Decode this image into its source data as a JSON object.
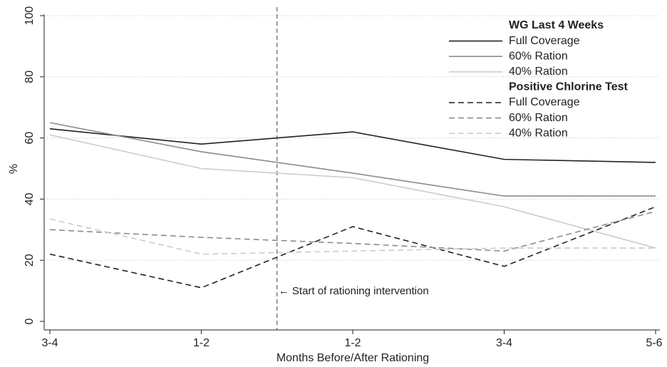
{
  "chart_data": {
    "type": "line",
    "x_label": "Months Before/After Rationing",
    "y_label": "%",
    "categories": [
      "3-4",
      "1-2",
      "1-2",
      "3-4",
      "5-6"
    ],
    "ylim": [
      0,
      100
    ],
    "yticks": [
      0,
      20,
      40,
      60,
      80,
      100
    ],
    "grid": true,
    "annotation": "← Start of rationing intervention",
    "groups": [
      {
        "title": "WG Last 4 Weeks",
        "dash": false,
        "series": [
          {
            "name": "Full Coverage",
            "color": "#222222",
            "values": [
              63,
              58,
              62,
              53,
              52
            ]
          },
          {
            "name": "60% Ration",
            "color": "#8c8c8c",
            "values": [
              65,
              55.5,
              48.5,
              41,
              41
            ]
          },
          {
            "name": "40% Ration",
            "color": "#cccccc",
            "values": [
              61,
              50,
              47,
              37.5,
              24
            ]
          }
        ]
      },
      {
        "title": "Positive Chlorine Test",
        "dash": true,
        "series": [
          {
            "name": "Full Coverage",
            "color": "#222222",
            "values": [
              22,
              11,
              31,
              18,
              37.5
            ]
          },
          {
            "name": "60% Ration",
            "color": "#8c8c8c",
            "values": [
              30,
              27.5,
              25.5,
              23,
              36
            ]
          },
          {
            "name": "40% Ration",
            "color": "#cccccc",
            "values": [
              33.5,
              22,
              23,
              24,
              24
            ]
          }
        ]
      }
    ]
  }
}
